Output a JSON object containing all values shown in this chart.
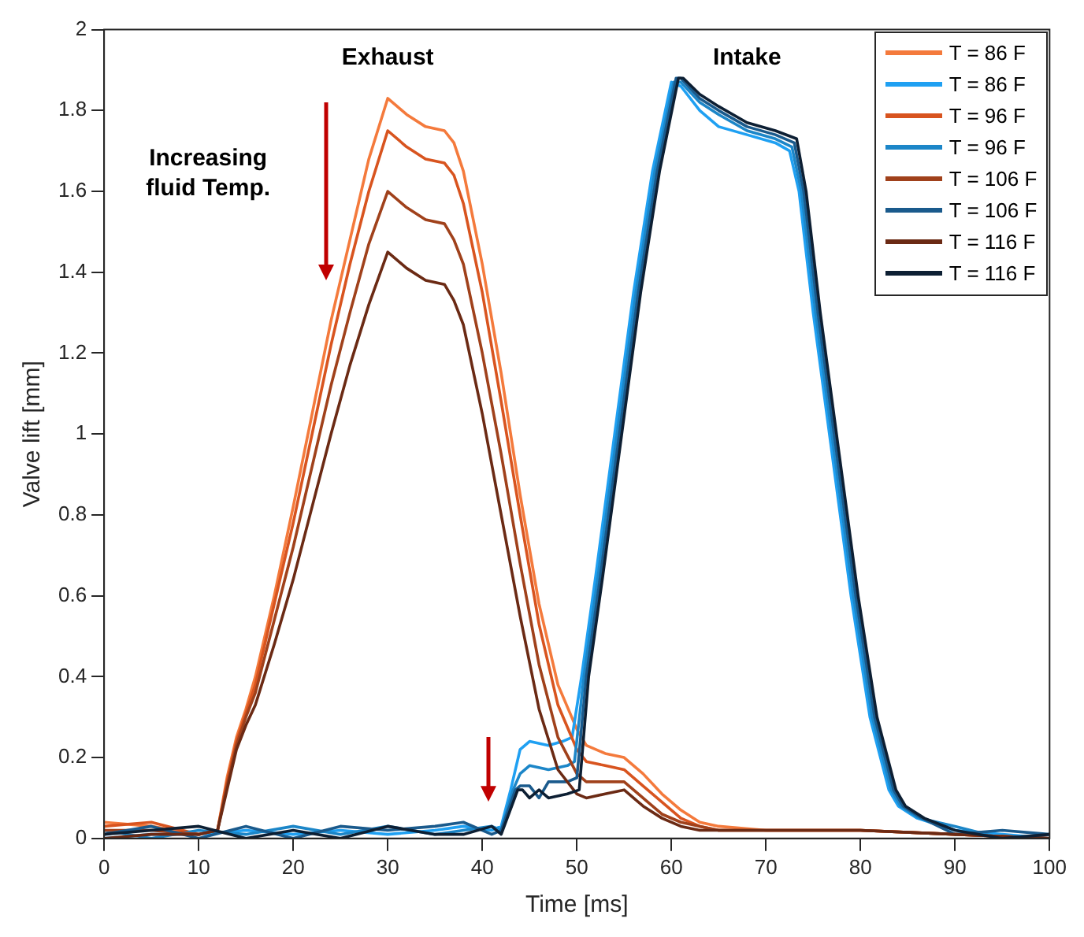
{
  "chart_data": {
    "type": "line",
    "xlabel": "Time [ms]",
    "ylabel": "Valve lift [mm]",
    "xlim": [
      0,
      100
    ],
    "ylim": [
      0,
      2
    ],
    "xticks": [
      0,
      10,
      20,
      30,
      40,
      50,
      60,
      70,
      80,
      90,
      100
    ],
    "yticks": [
      0,
      0.2,
      0.4,
      0.6,
      0.8,
      1,
      1.2,
      1.4,
      1.6,
      1.8,
      2
    ],
    "grid": false,
    "legend": "top right",
    "marker": "none",
    "line_style": "solid",
    "annotations": [
      "Exhaust",
      "Intake",
      "Increasing fluid Temp."
    ],
    "series": [
      {
        "name": "T = 86 F",
        "color": "#f47a3c",
        "x": [
          0,
          5,
          10,
          12,
          13,
          14,
          15,
          16,
          18,
          20,
          22,
          24,
          26,
          28,
          30,
          31,
          32,
          34,
          36,
          37,
          38,
          40,
          42,
          44,
          46,
          48,
          50,
          51,
          53,
          55,
          57,
          59,
          61,
          63,
          65,
          70,
          80,
          90,
          100
        ],
        "values": [
          0.04,
          0.03,
          0.01,
          0.02,
          0.15,
          0.25,
          0.32,
          0.4,
          0.6,
          0.82,
          1.05,
          1.28,
          1.48,
          1.68,
          1.83,
          1.81,
          1.79,
          1.76,
          1.75,
          1.72,
          1.65,
          1.42,
          1.15,
          0.85,
          0.58,
          0.38,
          0.27,
          0.23,
          0.21,
          0.2,
          0.16,
          0.11,
          0.07,
          0.04,
          0.03,
          0.02,
          0.02,
          0.01,
          0
        ]
      },
      {
        "name": "T = 86 F",
        "color": "#1fa0f2",
        "x": [
          0,
          5,
          10,
          15,
          20,
          25,
          30,
          35,
          38,
          41,
          42,
          43,
          44,
          45,
          47,
          48.5,
          49.5,
          50.5,
          52,
          54,
          56,
          58,
          60,
          61,
          63,
          65,
          68,
          71,
          72.5,
          73.5,
          75,
          77,
          79,
          81,
          83,
          84,
          86,
          90,
          95,
          100
        ],
        "values": [
          0,
          0.01,
          0.01,
          0.02,
          0.01,
          0.02,
          0.01,
          0.02,
          0.03,
          0.02,
          0.03,
          0.12,
          0.22,
          0.24,
          0.23,
          0.24,
          0.25,
          0.4,
          0.65,
          1,
          1.35,
          1.65,
          1.87,
          1.86,
          1.8,
          1.76,
          1.74,
          1.72,
          1.7,
          1.6,
          1.3,
          0.95,
          0.6,
          0.3,
          0.12,
          0.08,
          0.05,
          0.02,
          0.01,
          0
        ]
      },
      {
        "name": "T = 96 F",
        "color": "#d8541f",
        "x": [
          0,
          5,
          10,
          12,
          13,
          14,
          15,
          16,
          18,
          20,
          22,
          24,
          26,
          28,
          30,
          32,
          34,
          36,
          37,
          38,
          40,
          42,
          44,
          46,
          48,
          50,
          51,
          53,
          55,
          57,
          59,
          61,
          63,
          65,
          70,
          80,
          90,
          100
        ],
        "values": [
          0.03,
          0.04,
          0.01,
          0.02,
          0.14,
          0.24,
          0.31,
          0.38,
          0.58,
          0.78,
          1,
          1.22,
          1.42,
          1.6,
          1.75,
          1.71,
          1.68,
          1.67,
          1.64,
          1.57,
          1.35,
          1.08,
          0.8,
          0.53,
          0.33,
          0.22,
          0.19,
          0.18,
          0.17,
          0.13,
          0.09,
          0.05,
          0.03,
          0.02,
          0.02,
          0.02,
          0.01,
          0
        ]
      },
      {
        "name": "T = 96 F",
        "color": "#1c86c8",
        "x": [
          0,
          5,
          10,
          15,
          20,
          25,
          30,
          35,
          38,
          41,
          42,
          43.25,
          44,
          45,
          47,
          49,
          49.75,
          50.75,
          52.25,
          54.25,
          56.25,
          58.25,
          60.25,
          61,
          63,
          65,
          68,
          71,
          72.75,
          73.75,
          75.25,
          77.25,
          79.25,
          81.25,
          83.25,
          84.25,
          86.25,
          90,
          95,
          100
        ],
        "values": [
          0.02,
          0,
          0.02,
          0.01,
          0.03,
          0.01,
          0.03,
          0.01,
          0.02,
          0.03,
          0.02,
          0.12,
          0.16,
          0.18,
          0.17,
          0.18,
          0.19,
          0.4,
          0.65,
          1,
          1.35,
          1.65,
          1.87,
          1.87,
          1.82,
          1.79,
          1.75,
          1.73,
          1.71,
          1.6,
          1.3,
          0.95,
          0.6,
          0.3,
          0.12,
          0.08,
          0.05,
          0.03,
          0,
          0.01
        ]
      },
      {
        "name": "T = 106 F",
        "color": "#a0411b",
        "x": [
          0,
          5,
          10,
          12,
          13,
          14,
          15,
          16,
          18,
          20,
          22,
          24,
          26,
          28,
          30,
          32,
          34,
          36,
          37,
          38,
          40,
          42,
          44,
          46,
          48,
          50,
          51,
          53,
          55,
          57,
          59,
          61,
          63,
          65,
          70,
          80,
          90,
          100
        ],
        "values": [
          0.02,
          0.02,
          0.01,
          0.02,
          0.13,
          0.23,
          0.3,
          0.36,
          0.54,
          0.72,
          0.92,
          1.12,
          1.3,
          1.47,
          1.6,
          1.56,
          1.53,
          1.52,
          1.48,
          1.42,
          1.2,
          0.95,
          0.68,
          0.43,
          0.25,
          0.16,
          0.14,
          0.14,
          0.14,
          0.1,
          0.06,
          0.04,
          0.03,
          0.02,
          0.02,
          0.02,
          0.01,
          0
        ]
      },
      {
        "name": "T = 106 F",
        "color": "#1a5a8c",
        "x": [
          0,
          5,
          10,
          15,
          20,
          25,
          30,
          35,
          38,
          41,
          42,
          43.5,
          44,
          45,
          46,
          47,
          49,
          50,
          51,
          52.5,
          54.5,
          56.5,
          58.5,
          60.5,
          61,
          63,
          65,
          68,
          71,
          73,
          74,
          75.5,
          77.5,
          79.5,
          81.5,
          83.5,
          84.5,
          86.5,
          90,
          95,
          100
        ],
        "values": [
          0.01,
          0.03,
          0,
          0.03,
          0,
          0.03,
          0.02,
          0.03,
          0.04,
          0.01,
          0.02,
          0.12,
          0.13,
          0.13,
          0.1,
          0.14,
          0.14,
          0.15,
          0.4,
          0.65,
          1,
          1.35,
          1.65,
          1.88,
          1.88,
          1.83,
          1.8,
          1.76,
          1.74,
          1.72,
          1.6,
          1.3,
          0.95,
          0.6,
          0.3,
          0.12,
          0.08,
          0.05,
          0.01,
          0.02,
          0.01
        ]
      },
      {
        "name": "T = 116 F",
        "color": "#6b2a14",
        "x": [
          0,
          5,
          10,
          12,
          13,
          14,
          15,
          16,
          18,
          20,
          22,
          24,
          26,
          28,
          30,
          32,
          34,
          36,
          37,
          38,
          40,
          42,
          44,
          46,
          48,
          50,
          51,
          53,
          55,
          57,
          59,
          61,
          63,
          65,
          70,
          80,
          90,
          100
        ],
        "values": [
          0,
          0.01,
          0.01,
          0.02,
          0.12,
          0.22,
          0.28,
          0.33,
          0.48,
          0.64,
          0.82,
          1,
          1.17,
          1.32,
          1.45,
          1.41,
          1.38,
          1.37,
          1.33,
          1.27,
          1.05,
          0.8,
          0.55,
          0.32,
          0.17,
          0.11,
          0.1,
          0.11,
          0.12,
          0.08,
          0.05,
          0.03,
          0.02,
          0.02,
          0.02,
          0.02,
          0.01,
          0
        ]
      },
      {
        "name": "T = 116 F",
        "color": "#0d1f33",
        "x": [
          0,
          5,
          10,
          15,
          20,
          25,
          30,
          35,
          38,
          41,
          42,
          43.75,
          44.25,
          45,
          46,
          47,
          49,
          50.25,
          51.25,
          52.75,
          54.75,
          56.75,
          58.75,
          60.75,
          61.25,
          63,
          65,
          68,
          71,
          73.25,
          74.25,
          75.75,
          77.75,
          79.75,
          81.75,
          83.75,
          84.75,
          86.75,
          90,
          95,
          100
        ],
        "values": [
          0.01,
          0.02,
          0.03,
          0,
          0.02,
          0,
          0.03,
          0.01,
          0.01,
          0.03,
          0.01,
          0.12,
          0.12,
          0.1,
          0.12,
          0.1,
          0.11,
          0.12,
          0.4,
          0.65,
          1,
          1.35,
          1.65,
          1.88,
          1.88,
          1.84,
          1.81,
          1.77,
          1.75,
          1.73,
          1.6,
          1.3,
          0.95,
          0.6,
          0.3,
          0.12,
          0.08,
          0.05,
          0.02,
          0,
          0.01
        ]
      }
    ]
  }
}
